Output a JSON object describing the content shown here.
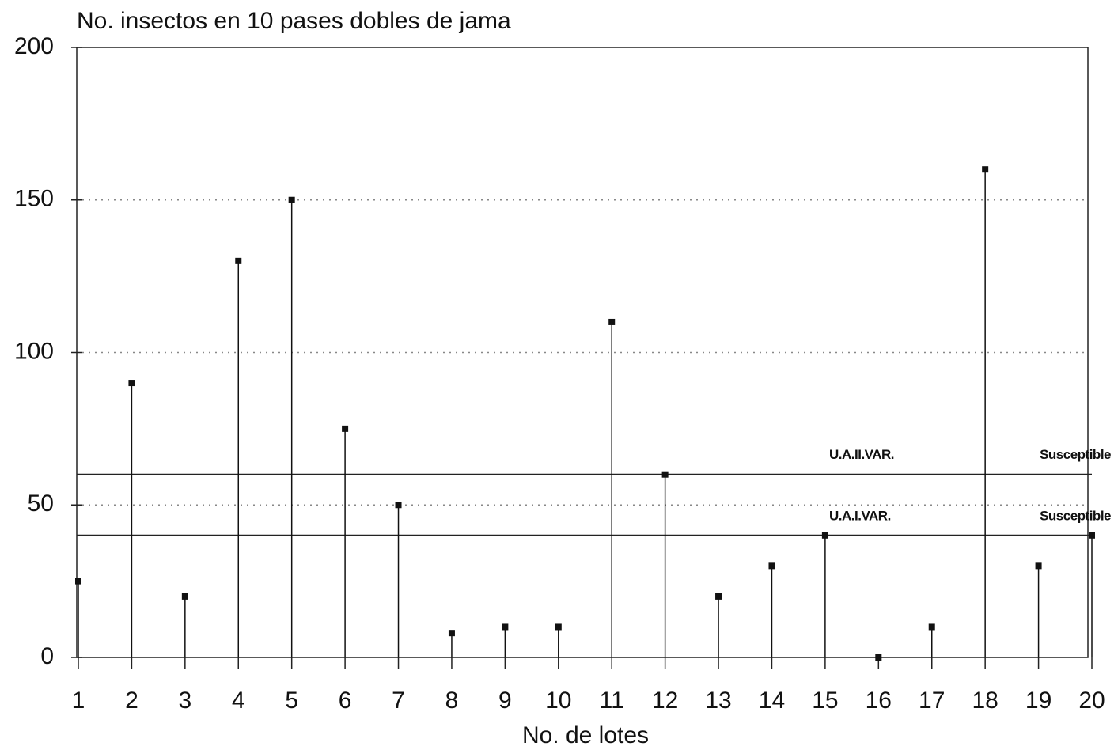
{
  "chart_data": {
    "type": "stem",
    "title": "No. insectos en 10 pases dobles de jama",
    "x_label": "No. de lotes",
    "x": [
      1,
      2,
      3,
      4,
      5,
      6,
      7,
      8,
      9,
      10,
      11,
      12,
      13,
      14,
      15,
      16,
      17,
      18,
      19,
      20
    ],
    "values": [
      25,
      90,
      20,
      130,
      150,
      75,
      50,
      8,
      10,
      10,
      110,
      60,
      20,
      30,
      40,
      0,
      10,
      160,
      30,
      40
    ],
    "color": "#111111",
    "xlim": [
      1,
      20
    ],
    "xticks": [
      1,
      2,
      3,
      4,
      5,
      6,
      7,
      8,
      9,
      10,
      11,
      12,
      13,
      14,
      15,
      16,
      17,
      18,
      19,
      20
    ],
    "ylim": [
      0,
      200
    ],
    "yticks": [
      0,
      50,
      100,
      150,
      200
    ],
    "grid": true,
    "reference_lines": [
      {
        "value": 60,
        "labels": [
          "U.A.II.VAR.",
          "Susceptible"
        ]
      },
      {
        "value": 40,
        "labels": [
          "U.A.I.VAR.",
          "Susceptible"
        ]
      }
    ]
  }
}
